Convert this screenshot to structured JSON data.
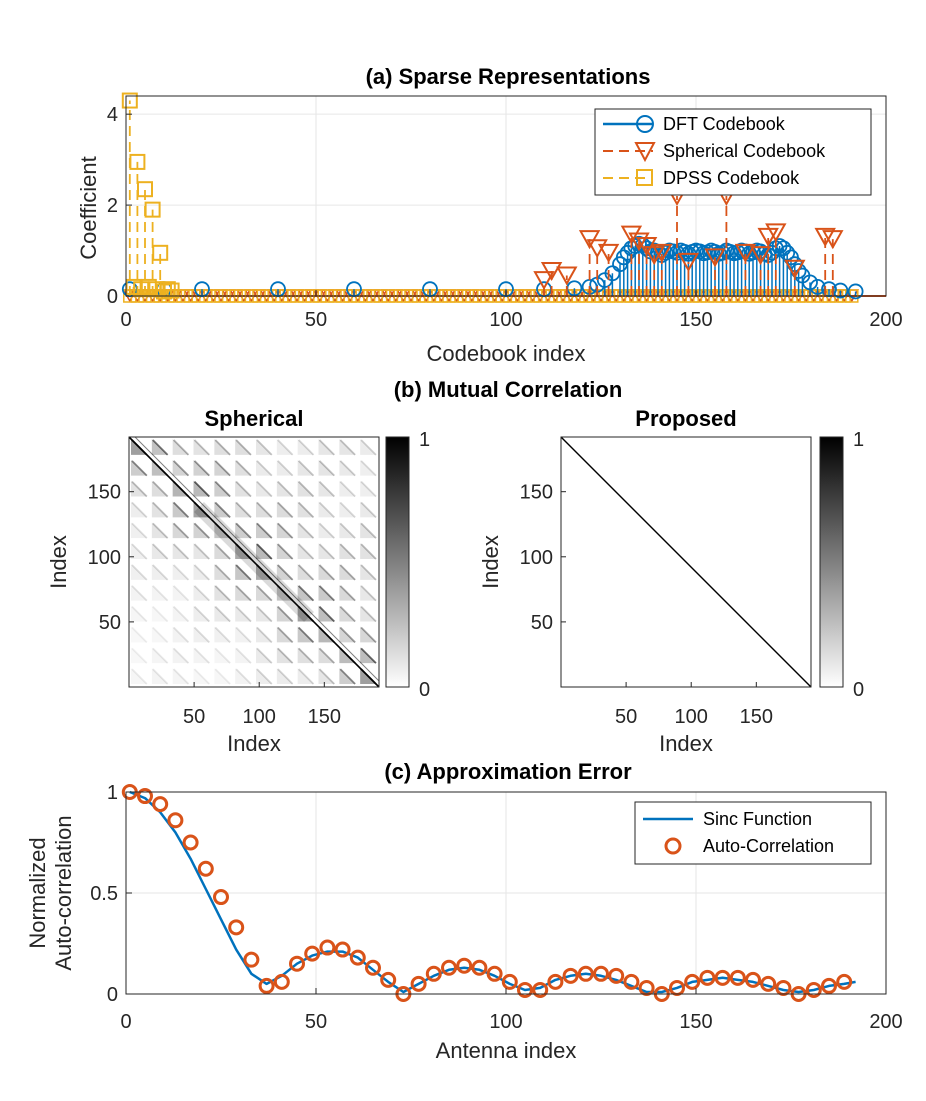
{
  "chart_data": [
    {
      "type": "stem",
      "title": "(a) Sparse Representations",
      "xlabel": "Codebook index",
      "ylabel": "Coefficient",
      "xlim": [
        0,
        200
      ],
      "ylim": [
        0,
        4.4
      ],
      "xticks": [
        "0",
        "50",
        "100",
        "150",
        "200"
      ],
      "yticks": [
        "0",
        "2",
        "4"
      ],
      "grid": true,
      "legend_position": "top-right",
      "series": [
        {
          "name": "DFT Codebook",
          "marker": "circle",
          "color": "#0072BD",
          "line": "solid",
          "x": [
            1,
            10,
            20,
            40,
            60,
            80,
            100,
            110,
            118,
            122,
            124,
            126,
            128,
            130,
            131,
            132,
            133,
            134,
            135,
            136,
            137,
            138,
            139,
            140,
            141,
            142,
            143,
            144,
            145,
            146,
            147,
            148,
            149,
            150,
            151,
            152,
            153,
            154,
            155,
            156,
            157,
            158,
            159,
            160,
            161,
            162,
            163,
            164,
            165,
            166,
            167,
            168,
            169,
            170,
            171,
            172,
            173,
            174,
            175,
            176,
            177,
            178,
            180,
            182,
            185,
            188,
            192
          ],
          "values": [
            0.15,
            0.15,
            0.15,
            0.15,
            0.15,
            0.15,
            0.15,
            0.15,
            0.17,
            0.2,
            0.25,
            0.35,
            0.5,
            0.7,
            0.85,
            0.95,
            1.05,
            1.1,
            1.15,
            1.12,
            1.05,
            0.98,
            1.0,
            0.97,
            0.9,
            0.95,
            1.0,
            0.98,
            0.95,
            1.0,
            0.97,
            0.93,
            0.97,
            1.0,
            0.98,
            0.94,
            0.96,
            1.0,
            0.97,
            0.93,
            0.95,
            1.0,
            0.97,
            0.94,
            0.96,
            1.0,
            0.98,
            0.93,
            0.96,
            1.0,
            0.98,
            0.93,
            0.9,
            0.95,
            1.05,
            1.1,
            1.05,
            0.95,
            0.85,
            0.7,
            0.55,
            0.45,
            0.3,
            0.2,
            0.15,
            0.12,
            0.1
          ]
        },
        {
          "name": "Spherical Codebook",
          "marker": "triangle-down",
          "color": "#D95319",
          "line": "dashed",
          "x": [
            110,
            112,
            116,
            122,
            124,
            127,
            133,
            135,
            137,
            139,
            141,
            145,
            148,
            155,
            158,
            163,
            167,
            169,
            171,
            176,
            184,
            186
          ],
          "values": [
            0.35,
            0.55,
            0.45,
            1.25,
            1.05,
            0.95,
            1.35,
            1.2,
            1.1,
            0.9,
            0.95,
            2.2,
            0.75,
            0.85,
            2.2,
            0.95,
            0.9,
            1.3,
            1.4,
            0.6,
            1.3,
            1.25
          ]
        },
        {
          "name": "DPSS Codebook",
          "marker": "square",
          "color": "#EDB120",
          "line": "dashed",
          "x": [
            1,
            2,
            3,
            4,
            5,
            6,
            7,
            8,
            9,
            10,
            11,
            12
          ],
          "values": [
            4.3,
            0.2,
            2.95,
            0.15,
            2.35,
            0.2,
            1.9,
            0.15,
            0.95,
            0.1,
            0.15,
            0.12
          ]
        }
      ]
    },
    {
      "type": "heatmap",
      "title": "Spherical",
      "suptitle": "(b) Mutual Correlation",
      "xlabel": "Index",
      "ylabel": "Index",
      "xticks": [
        "50",
        "100",
        "150"
      ],
      "yticks": [
        "50",
        "100",
        "150"
      ],
      "size": 192,
      "colormap": "gray-reversed",
      "colorbar_ticks": [
        "0",
        "1"
      ],
      "pattern": "diagonal band with block-wise off-diagonal correlations"
    },
    {
      "type": "heatmap",
      "title": "Proposed",
      "xlabel": "Index",
      "ylabel": "Index",
      "xticks": [
        "50",
        "100",
        "150"
      ],
      "yticks": [
        "50",
        "100",
        "150"
      ],
      "size": 192,
      "colormap": "gray-reversed",
      "colorbar_ticks": [
        "0",
        "1"
      ],
      "pattern": "identity"
    },
    {
      "type": "line",
      "title": "(c) Approximation Error",
      "xlabel": "Antenna index",
      "ylabel": "Normalized Auto-correlation",
      "ylabel_lines": [
        "Normalized",
        "Auto-correlation"
      ],
      "xlim": [
        0,
        200
      ],
      "ylim": [
        0,
        1
      ],
      "xticks": [
        "0",
        "50",
        "100",
        "150",
        "200"
      ],
      "yticks": [
        "0",
        "0.5",
        "1"
      ],
      "grid": true,
      "legend_position": "top-right",
      "series": [
        {
          "name": "Sinc Function",
          "style": "line",
          "color": "#0072BD",
          "x": [
            1,
            5,
            9,
            13,
            17,
            21,
            25,
            29,
            33,
            37,
            41,
            45,
            49,
            53,
            57,
            61,
            65,
            69,
            73,
            77,
            81,
            85,
            89,
            93,
            97,
            101,
            105,
            109,
            113,
            117,
            121,
            125,
            129,
            133,
            137,
            141,
            145,
            149,
            153,
            157,
            161,
            165,
            169,
            173,
            177,
            181,
            185,
            189,
            192
          ],
          "values": [
            1.0,
            0.97,
            0.9,
            0.8,
            0.67,
            0.52,
            0.37,
            0.22,
            0.1,
            0.05,
            0.09,
            0.15,
            0.19,
            0.21,
            0.21,
            0.18,
            0.12,
            0.06,
            0.01,
            0.05,
            0.09,
            0.12,
            0.13,
            0.12,
            0.09,
            0.05,
            0.02,
            0.03,
            0.07,
            0.09,
            0.1,
            0.09,
            0.07,
            0.04,
            0.01,
            0.01,
            0.03,
            0.06,
            0.07,
            0.08,
            0.07,
            0.06,
            0.04,
            0.02,
            0.01,
            0.02,
            0.04,
            0.05,
            0.06
          ]
        },
        {
          "name": "Auto-Correlation",
          "style": "circle",
          "color": "#D95319",
          "x": [
            1,
            5,
            9,
            13,
            17,
            21,
            25,
            29,
            33,
            37,
            41,
            45,
            49,
            53,
            57,
            61,
            65,
            69,
            73,
            77,
            81,
            85,
            89,
            93,
            97,
            101,
            105,
            109,
            113,
            117,
            121,
            125,
            129,
            133,
            137,
            141,
            145,
            149,
            153,
            157,
            161,
            165,
            169,
            173,
            177,
            181,
            185,
            189
          ],
          "values": [
            1.0,
            0.98,
            0.94,
            0.86,
            0.75,
            0.62,
            0.48,
            0.33,
            0.17,
            0.04,
            0.06,
            0.15,
            0.2,
            0.23,
            0.22,
            0.18,
            0.13,
            0.07,
            0.0,
            0.05,
            0.1,
            0.13,
            0.14,
            0.13,
            0.1,
            0.06,
            0.02,
            0.02,
            0.06,
            0.09,
            0.1,
            0.1,
            0.09,
            0.06,
            0.03,
            0.0,
            0.03,
            0.06,
            0.08,
            0.08,
            0.08,
            0.07,
            0.05,
            0.03,
            0.0,
            0.02,
            0.04,
            0.06
          ]
        }
      ]
    }
  ],
  "colors": {
    "dft": "#0072BD",
    "spherical": "#D95319",
    "dpss": "#EDB120"
  }
}
